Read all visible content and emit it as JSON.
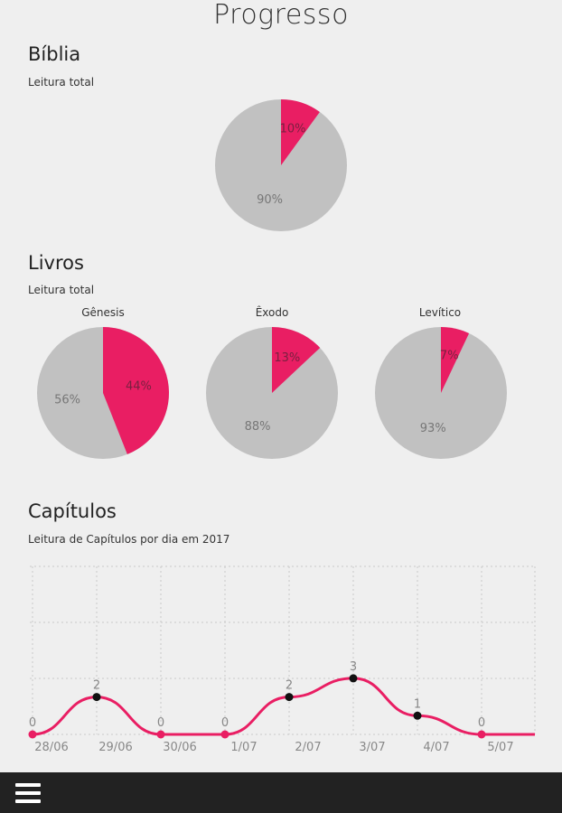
{
  "page": {
    "title": "Progresso"
  },
  "biblia": {
    "title": "Bíblia",
    "subtitle": "Leitura total",
    "pie": {
      "read_pct": 10,
      "unread_pct": 90,
      "read_label": "10%",
      "unread_label": "90%"
    }
  },
  "livros": {
    "title": "Livros",
    "subtitle": "Leitura total",
    "books": [
      {
        "name": "Gênesis",
        "read_pct": 44,
        "unread_pct": 56,
        "read_label": "44%",
        "unread_label": "56%"
      },
      {
        "name": "Êxodo",
        "read_pct": 13,
        "unread_pct": 88,
        "read_label": "13%",
        "unread_label": "88%"
      },
      {
        "name": "Levítico",
        "read_pct": 7,
        "unread_pct": 93,
        "read_label": "7%",
        "unread_label": "93%"
      }
    ]
  },
  "capitulos": {
    "title": "Capítulos",
    "subtitle": "Leitura de Capítulos por dia em 2017"
  },
  "colors": {
    "read": "#e91e63",
    "unread": "#c1c1c1",
    "line": "#e91e63",
    "point": "#111111",
    "background": "#efefef"
  },
  "chart_data": {
    "type": "line",
    "categories": [
      "28/06",
      "29/06",
      "30/06",
      "1/07",
      "2/07",
      "3/07",
      "4/07",
      "5/07"
    ],
    "values": [
      0,
      2,
      0,
      0,
      2,
      3,
      1,
      0
    ],
    "value_labels": [
      "0",
      "2",
      "0",
      "0",
      "2",
      "3",
      "1",
      "0"
    ],
    "ylim": [
      0,
      9
    ],
    "grid": true,
    "smooth": true
  },
  "bottom_bar": {
    "menu_icon": "hamburger-menu-icon"
  }
}
